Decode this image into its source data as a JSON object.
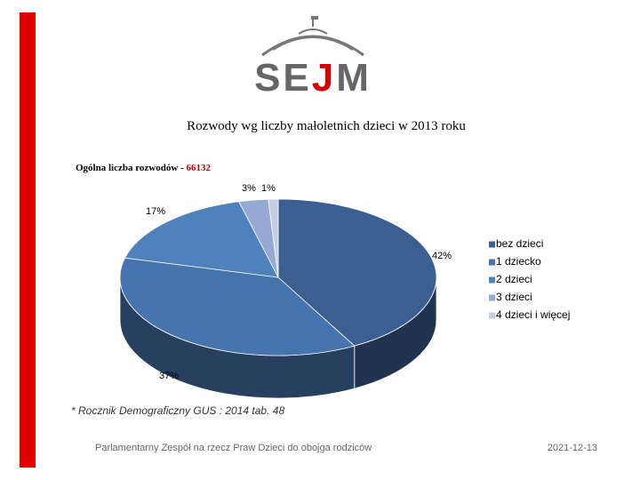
{
  "logo": "SEJM",
  "chart_data": {
    "type": "pie",
    "title": "Rozwody wg liczby małoletnich dzieci w 2013 roku",
    "subtitle": "Ogólna liczba rozwodów -",
    "total": 66132,
    "categories": [
      "bez dzieci",
      "1 dziecko",
      "2 dzieci",
      "3 dzieci",
      "4 dzieci i więcej"
    ],
    "values": [
      42,
      37,
      17,
      3,
      1
    ],
    "value_labels": [
      "42%",
      "37%",
      "17%",
      "3%",
      "1%"
    ],
    "colors": [
      "#3b5f91",
      "#4674ae",
      "#4f81bd",
      "#95a9d3",
      "#c3cde6"
    ],
    "legend": "right"
  },
  "footnote": "* Rocznik Demograficzny GUS : 2014 tab. 48",
  "footer": {
    "left": "Parlamentarny Zespół na rzecz Praw Dzieci do obojga rodziców",
    "date": "2021-12-13"
  }
}
